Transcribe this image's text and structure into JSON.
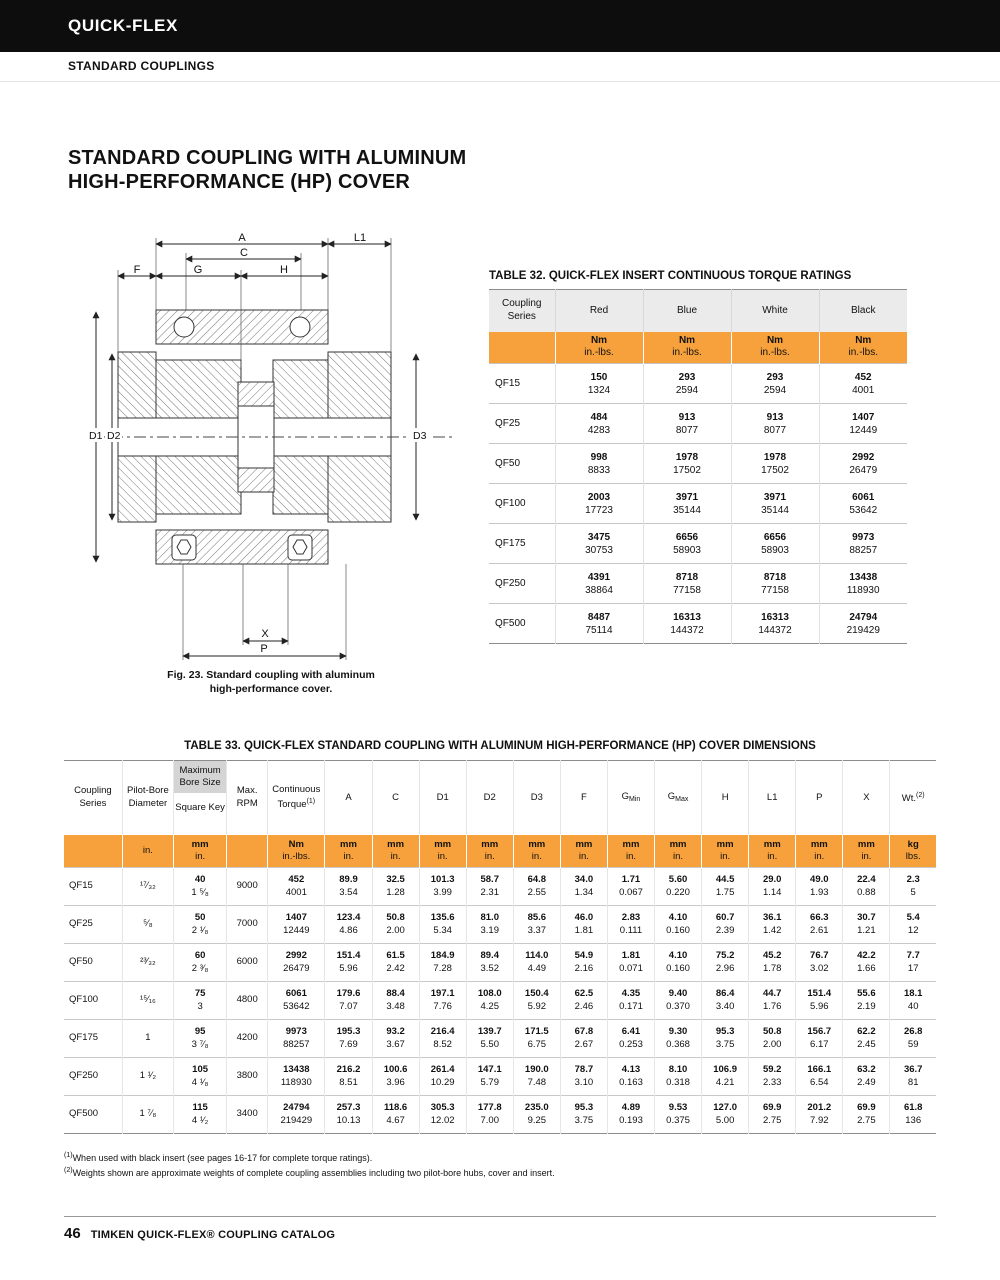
{
  "colors": {
    "accent_orange": "#F6A13B",
    "header_bar_black": "#0D0D0D",
    "table_header_gray": "#EBEBEB",
    "bore_header_gray": "#D4D4D4"
  },
  "page": {
    "brand": "QUICK-FLEX",
    "subbrand": "STANDARD COUPLINGS",
    "title_line1": "STANDARD COUPLING WITH ALUMINUM",
    "title_line2": "HIGH-PERFORMANCE (HP) COVER",
    "footer_page": "46",
    "footer_text": "TIMKEN QUICK-FLEX® COUPLING CATALOG"
  },
  "figure": {
    "caption_line1": "Fig. 23. Standard coupling with aluminum",
    "caption_line2": "high-performance cover.",
    "dims": {
      "a": "A",
      "c": "C",
      "l1": "L1",
      "f": "F",
      "g": "G",
      "h": "H",
      "d1": "D1",
      "d2": "D2",
      "d3": "D3",
      "x": "X",
      "p": "P"
    }
  },
  "table32": {
    "title": "TABLE 32. QUICK-FLEX INSERT CONTINUOUS TORQUE RATINGS",
    "series_header": "Coupling Series",
    "color_headers": [
      "Red",
      "Blue",
      "White",
      "Black"
    ],
    "unit_top": "Nm",
    "unit_bottom": "in.-lbs.",
    "rows": [
      {
        "series": "QF15",
        "values": [
          [
            "150",
            "1324"
          ],
          [
            "293",
            "2594"
          ],
          [
            "293",
            "2594"
          ],
          [
            "452",
            "4001"
          ]
        ]
      },
      {
        "series": "QF25",
        "values": [
          [
            "484",
            "4283"
          ],
          [
            "913",
            "8077"
          ],
          [
            "913",
            "8077"
          ],
          [
            "1407",
            "12449"
          ]
        ]
      },
      {
        "series": "QF50",
        "values": [
          [
            "998",
            "8833"
          ],
          [
            "1978",
            "17502"
          ],
          [
            "1978",
            "17502"
          ],
          [
            "2992",
            "26479"
          ]
        ]
      },
      {
        "series": "QF100",
        "values": [
          [
            "2003",
            "17723"
          ],
          [
            "3971",
            "35144"
          ],
          [
            "3971",
            "35144"
          ],
          [
            "6061",
            "53642"
          ]
        ]
      },
      {
        "series": "QF175",
        "values": [
          [
            "3475",
            "30753"
          ],
          [
            "6656",
            "58903"
          ],
          [
            "6656",
            "58903"
          ],
          [
            "9973",
            "88257"
          ]
        ]
      },
      {
        "series": "QF250",
        "values": [
          [
            "4391",
            "38864"
          ],
          [
            "8718",
            "77158"
          ],
          [
            "8718",
            "77158"
          ],
          [
            "13438",
            "118930"
          ]
        ]
      },
      {
        "series": "QF500",
        "values": [
          [
            "8487",
            "75114"
          ],
          [
            "16313",
            "144372"
          ],
          [
            "16313",
            "144372"
          ],
          [
            "24794",
            "219429"
          ]
        ]
      }
    ]
  },
  "table33": {
    "title": "TABLE 33. QUICK-FLEX STANDARD COUPLING WITH ALUMINUM HIGH-PERFORMANCE (HP) COVER DIMENSIONS",
    "head": {
      "coupling_series": "Coupling Series",
      "pilot_bore": "Pilot-Bore Diameter",
      "max_bore_top": "Maximum Bore Size",
      "max_bore_bottom": "Square Key",
      "max_rpm": "Max. RPM",
      "torque": "Continuous Torque",
      "torque_sup": "(1)",
      "wt": "Wt.",
      "wt_sup": "(2)",
      "dim_cols": [
        {
          "t": "A"
        },
        {
          "t": "C"
        },
        {
          "t": "D1"
        },
        {
          "t": "D2"
        },
        {
          "t": "D3"
        },
        {
          "t": "F"
        },
        {
          "t": "G",
          "sub": "Min"
        },
        {
          "t": "G",
          "sub": "Max"
        },
        {
          "t": "H"
        },
        {
          "t": "L1"
        },
        {
          "t": "P"
        },
        {
          "t": "X"
        }
      ]
    },
    "units": {
      "pilot": "in.",
      "mm": "mm",
      "inch": "in.",
      "nm": "Nm",
      "inlbs": "in.-lbs.",
      "kg": "kg",
      "lbs": "lbs."
    },
    "rows": [
      {
        "series": "QF15",
        "pilot": "¹⁷⁄₃₂",
        "bore": [
          "40",
          "1 ⁵⁄₈"
        ],
        "rpm": "9000",
        "torque": [
          "452",
          "4001"
        ],
        "vals": [
          [
            "89.9",
            "3.54"
          ],
          [
            "32.5",
            "1.28"
          ],
          [
            "101.3",
            "3.99"
          ],
          [
            "58.7",
            "2.31"
          ],
          [
            "64.8",
            "2.55"
          ],
          [
            "34.0",
            "1.34"
          ],
          [
            "1.71",
            "0.067"
          ],
          [
            "5.60",
            "0.220"
          ],
          [
            "44.5",
            "1.75"
          ],
          [
            "29.0",
            "1.14"
          ],
          [
            "49.0",
            "1.93"
          ],
          [
            "22.4",
            "0.88"
          ]
        ],
        "wt": [
          "2.3",
          "5"
        ]
      },
      {
        "series": "QF25",
        "pilot": "⁵⁄₈",
        "bore": [
          "50",
          "2 ¹⁄₈"
        ],
        "rpm": "7000",
        "torque": [
          "1407",
          "12449"
        ],
        "vals": [
          [
            "123.4",
            "4.86"
          ],
          [
            "50.8",
            "2.00"
          ],
          [
            "135.6",
            "5.34"
          ],
          [
            "81.0",
            "3.19"
          ],
          [
            "85.6",
            "3.37"
          ],
          [
            "46.0",
            "1.81"
          ],
          [
            "2.83",
            "0.111"
          ],
          [
            "4.10",
            "0.160"
          ],
          [
            "60.7",
            "2.39"
          ],
          [
            "36.1",
            "1.42"
          ],
          [
            "66.3",
            "2.61"
          ],
          [
            "30.7",
            "1.21"
          ]
        ],
        "wt": [
          "5.4",
          "12"
        ]
      },
      {
        "series": "QF50",
        "pilot": "²³⁄₃₂",
        "bore": [
          "60",
          "2 ³⁄₈"
        ],
        "rpm": "6000",
        "torque": [
          "2992",
          "26479"
        ],
        "vals": [
          [
            "151.4",
            "5.96"
          ],
          [
            "61.5",
            "2.42"
          ],
          [
            "184.9",
            "7.28"
          ],
          [
            "89.4",
            "3.52"
          ],
          [
            "114.0",
            "4.49"
          ],
          [
            "54.9",
            "2.16"
          ],
          [
            "1.81",
            "0.071"
          ],
          [
            "4.10",
            "0.160"
          ],
          [
            "75.2",
            "2.96"
          ],
          [
            "45.2",
            "1.78"
          ],
          [
            "76.7",
            "3.02"
          ],
          [
            "42.2",
            "1.66"
          ]
        ],
        "wt": [
          "7.7",
          "17"
        ]
      },
      {
        "series": "QF100",
        "pilot": "¹⁵⁄₁₆",
        "bore": [
          "75",
          "3"
        ],
        "rpm": "4800",
        "torque": [
          "6061",
          "53642"
        ],
        "vals": [
          [
            "179.6",
            "7.07"
          ],
          [
            "88.4",
            "3.48"
          ],
          [
            "197.1",
            "7.76"
          ],
          [
            "108.0",
            "4.25"
          ],
          [
            "150.4",
            "5.92"
          ],
          [
            "62.5",
            "2.46"
          ],
          [
            "4.35",
            "0.171"
          ],
          [
            "9.40",
            "0.370"
          ],
          [
            "86.4",
            "3.40"
          ],
          [
            "44.7",
            "1.76"
          ],
          [
            "151.4",
            "5.96"
          ],
          [
            "55.6",
            "2.19"
          ]
        ],
        "wt": [
          "18.1",
          "40"
        ]
      },
      {
        "series": "QF175",
        "pilot": "1",
        "bore": [
          "95",
          "3 ⁷⁄₈"
        ],
        "rpm": "4200",
        "torque": [
          "9973",
          "88257"
        ],
        "vals": [
          [
            "195.3",
            "7.69"
          ],
          [
            "93.2",
            "3.67"
          ],
          [
            "216.4",
            "8.52"
          ],
          [
            "139.7",
            "5.50"
          ],
          [
            "171.5",
            "6.75"
          ],
          [
            "67.8",
            "2.67"
          ],
          [
            "6.41",
            "0.253"
          ],
          [
            "9.30",
            "0.368"
          ],
          [
            "95.3",
            "3.75"
          ],
          [
            "50.8",
            "2.00"
          ],
          [
            "156.7",
            "6.17"
          ],
          [
            "62.2",
            "2.45"
          ]
        ],
        "wt": [
          "26.8",
          "59"
        ]
      },
      {
        "series": "QF250",
        "pilot": "1 ¹⁄₂",
        "bore": [
          "105",
          "4 ¹⁄₈"
        ],
        "rpm": "3800",
        "torque": [
          "13438",
          "118930"
        ],
        "vals": [
          [
            "216.2",
            "8.51"
          ],
          [
            "100.6",
            "3.96"
          ],
          [
            "261.4",
            "10.29"
          ],
          [
            "147.1",
            "5.79"
          ],
          [
            "190.0",
            "7.48"
          ],
          [
            "78.7",
            "3.10"
          ],
          [
            "4.13",
            "0.163"
          ],
          [
            "8.10",
            "0.318"
          ],
          [
            "106.9",
            "4.21"
          ],
          [
            "59.2",
            "2.33"
          ],
          [
            "166.1",
            "6.54"
          ],
          [
            "63.2",
            "2.49"
          ]
        ],
        "wt": [
          "36.7",
          "81"
        ]
      },
      {
        "series": "QF500",
        "pilot": "1 ⁷⁄₈",
        "bore": [
          "115",
          "4 ¹⁄₂"
        ],
        "rpm": "3400",
        "torque": [
          "24794",
          "219429"
        ],
        "vals": [
          [
            "257.3",
            "10.13"
          ],
          [
            "118.6",
            "4.67"
          ],
          [
            "305.3",
            "12.02"
          ],
          [
            "177.8",
            "7.00"
          ],
          [
            "235.0",
            "9.25"
          ],
          [
            "95.3",
            "3.75"
          ],
          [
            "4.89",
            "0.193"
          ],
          [
            "9.53",
            "0.375"
          ],
          [
            "127.0",
            "5.00"
          ],
          [
            "69.9",
            "2.75"
          ],
          [
            "201.2",
            "7.92"
          ],
          [
            "69.9",
            "2.75"
          ]
        ],
        "wt": [
          "61.8",
          "136"
        ]
      }
    ]
  },
  "footnotes": [
    {
      "sup": "(1)",
      "text": "When used with black insert (see pages 16-17 for complete torque ratings)."
    },
    {
      "sup": "(2)",
      "text": "Weights shown are approximate weights of complete coupling assemblies including two pilot-bore hubs, cover and insert."
    }
  ]
}
